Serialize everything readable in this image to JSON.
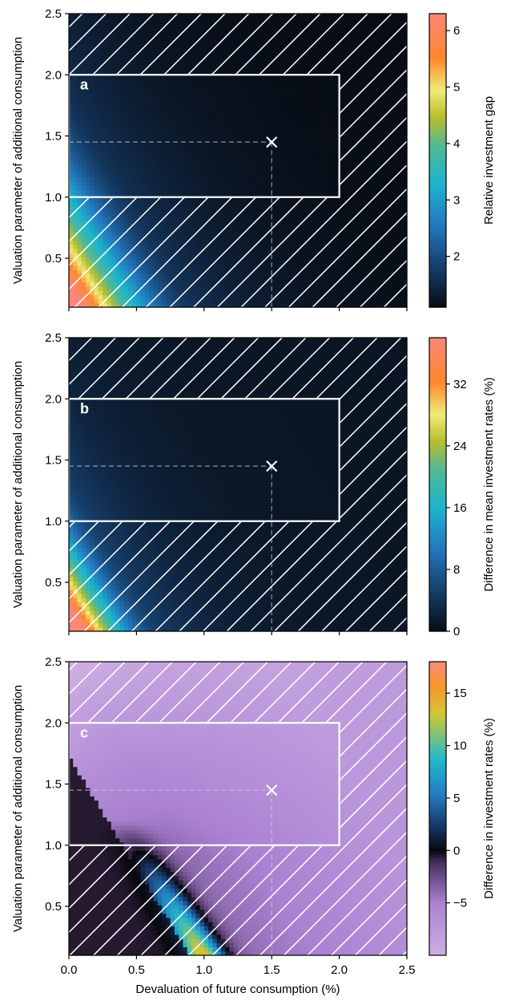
{
  "chart_data": [
    {
      "type": "heatmap",
      "panel_letter": "a",
      "xlabel": "",
      "ylabel": "Valuation parameter of additional consumption",
      "xlim": [
        0,
        2.5
      ],
      "ylim": [
        0.1,
        2.5
      ],
      "xticks": [
        "0.0",
        "0.5",
        "1.0",
        "1.5",
        "2.0",
        "2.5"
      ],
      "yticks": [
        "0.5",
        "1.0",
        "1.5",
        "2.0",
        "2.5"
      ],
      "xtick_labels_shown": false,
      "colorbar": {
        "label": "Relative investment gap",
        "range": [
          1.1,
          6.3
        ],
        "ticks": [
          "2",
          "3",
          "4",
          "5",
          "6"
        ],
        "tick_values": [
          2,
          3,
          4,
          5,
          6
        ],
        "colormap": "rainbow-dark"
      },
      "highlight_region": {
        "x": [
          0,
          2
        ],
        "y": [
          1,
          2
        ]
      },
      "marker": {
        "x": 1.5,
        "y": 1.45,
        "symbol": "×"
      },
      "field": {
        "type": "inverse",
        "min": 1.1,
        "max": 6.3,
        "peak_at": [
          0,
          0.1
        ],
        "saturate_at": 0.85,
        "decay": 1.6
      }
    },
    {
      "type": "heatmap",
      "panel_letter": "b",
      "xlabel": "",
      "ylabel": "Valuation parameter of additional consumption",
      "xlim": [
        0,
        2.5
      ],
      "ylim": [
        0.1,
        2.5
      ],
      "xticks": [
        "0.0",
        "0.5",
        "1.0",
        "1.5",
        "2.0",
        "2.5"
      ],
      "yticks": [
        "0.5",
        "1.0",
        "1.5",
        "2.0",
        "2.5"
      ],
      "xtick_labels_shown": false,
      "colorbar": {
        "label": "Difference in mean investment rates (%)",
        "range": [
          0,
          38
        ],
        "ticks": [
          "0",
          "8",
          "16",
          "24",
          "32"
        ],
        "tick_values": [
          0,
          8,
          16,
          24,
          32
        ],
        "colormap": "rainbow-dark"
      },
      "highlight_region": {
        "x": [
          0,
          2
        ],
        "y": [
          1,
          2
        ]
      },
      "marker": {
        "x": 1.5,
        "y": 1.45,
        "symbol": "×"
      },
      "field": {
        "type": "inverse",
        "min": 1,
        "max": 38,
        "peak_at": [
          0,
          0.1
        ],
        "saturate_at": 0.55,
        "decay": 2.2
      }
    },
    {
      "type": "heatmap",
      "panel_letter": "c",
      "xlabel": "Devaluation of future consumption (%)",
      "ylabel": "Valuation parameter of additional consumption",
      "xlim": [
        0,
        2.5
      ],
      "ylim": [
        0.1,
        2.5
      ],
      "xticks": [
        "0.0",
        "0.5",
        "1.0",
        "1.5",
        "2.0",
        "2.5"
      ],
      "yticks": [
        "0.5",
        "1.0",
        "1.5",
        "2.0",
        "2.5"
      ],
      "xtick_labels_shown": true,
      "colorbar": {
        "label": "Difference in investment rates (%)",
        "range": [
          -10,
          18
        ],
        "ticks": [
          "−5",
          "0",
          "5",
          "10",
          "15"
        ],
        "tick_values": [
          -5,
          0,
          5,
          10,
          15
        ],
        "colormap": "diverging-purple"
      },
      "highlight_region": {
        "x": [
          0,
          2
        ],
        "y": [
          1,
          2
        ]
      },
      "marker": {
        "x": 1.5,
        "y": 1.45,
        "symbol": "×"
      },
      "field": {
        "type": "diverging-band",
        "min": -10,
        "max": 18
      }
    }
  ]
}
